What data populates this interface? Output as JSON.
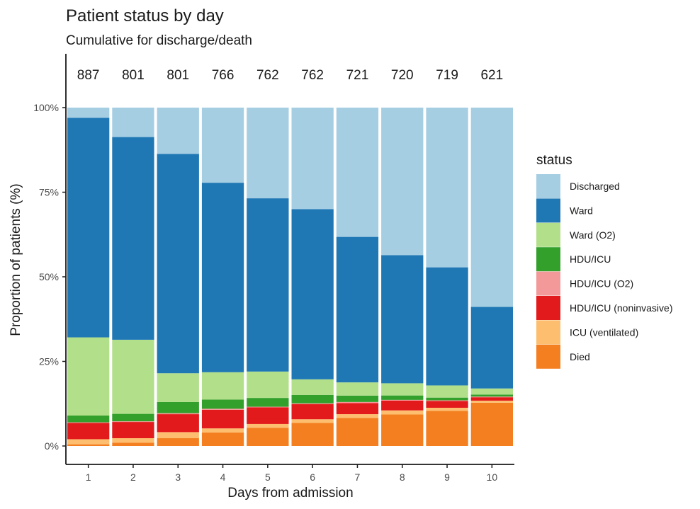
{
  "chart_data": {
    "type": "bar",
    "stacked": true,
    "normalized": true,
    "title": "Patient status by day",
    "subtitle": "Cumulative for discharge/death",
    "xlabel": "Days from admission",
    "ylabel": "Proportion of patients (%)",
    "ylim": [
      0,
      100
    ],
    "yticks": [
      0,
      25,
      50,
      75,
      100
    ],
    "ytick_labels": [
      "0%",
      "25%",
      "50%",
      "75%",
      "100%"
    ],
    "categories": [
      "1",
      "2",
      "3",
      "4",
      "5",
      "6",
      "7",
      "8",
      "9",
      "10"
    ],
    "counts": [
      "887",
      "801",
      "801",
      "766",
      "762",
      "762",
      "721",
      "720",
      "719",
      "621"
    ],
    "grid": false,
    "legend": {
      "title": "status",
      "placement": "right"
    },
    "series": [
      {
        "name": "Died",
        "color": "#F47F20",
        "values": [
          0.5,
          1.0,
          2.3,
          4.0,
          5.4,
          6.8,
          8.3,
          9.3,
          10.4,
          12.8
        ]
      },
      {
        "name": "ICU (ventilated)",
        "color": "#FDBF6F",
        "values": [
          1.5,
          1.3,
          1.8,
          1.2,
          1.1,
          1.1,
          1.1,
          1.2,
          0.9,
          0.6
        ]
      },
      {
        "name": "HDU/ICU (noninvasive)",
        "color": "#E31A1C",
        "values": [
          4.8,
          4.8,
          5.3,
          5.5,
          4.9,
          4.5,
          3.3,
          2.9,
          2.0,
          1.0
        ]
      },
      {
        "name": "HDU/ICU (O2)",
        "color": "#F4999A",
        "values": [
          0.2,
          0.2,
          0.3,
          0.3,
          0.2,
          0.2,
          0.3,
          0.2,
          0.2,
          0.2
        ]
      },
      {
        "name": "HDU/ICU",
        "color": "#33A02C",
        "values": [
          2.0,
          2.2,
          3.3,
          2.7,
          2.6,
          2.5,
          1.9,
          1.3,
          0.8,
          0.6
        ]
      },
      {
        "name": "Ward (O2)",
        "color": "#B2DF8A",
        "values": [
          23.1,
          21.9,
          8.5,
          8.1,
          7.8,
          4.6,
          3.9,
          3.6,
          3.6,
          1.8
        ]
      },
      {
        "name": "Ward",
        "color": "#1F78B4",
        "values": [
          64.9,
          59.9,
          64.8,
          56.0,
          51.2,
          50.3,
          43.0,
          37.8,
          34.9,
          24.1
        ]
      },
      {
        "name": "Discharged",
        "color": "#A6CEE3",
        "values": [
          3.0,
          8.7,
          13.7,
          22.2,
          26.8,
          30.0,
          38.2,
          43.5,
          47.2,
          58.9
        ]
      }
    ],
    "legend_order": [
      "Discharged",
      "Ward",
      "Ward (O2)",
      "HDU/ICU",
      "HDU/ICU (O2)",
      "HDU/ICU (noninvasive)",
      "ICU (ventilated)",
      "Died"
    ]
  }
}
